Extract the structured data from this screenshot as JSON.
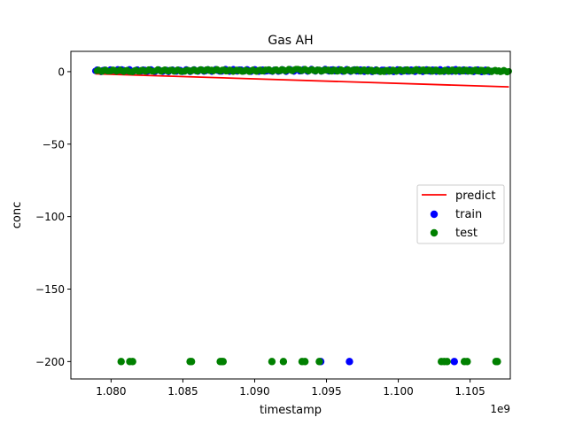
{
  "chart_data": {
    "type": "scatter",
    "title": "Gas AH",
    "xlabel": "timestamp",
    "ylabel": "conc",
    "x_offset_label": "1e9",
    "xlim": [
      1077200000.0,
      1107800000.0
    ],
    "ylim": [
      -212,
      14
    ],
    "x_ticks": [
      1080000000.0,
      1085000000.0,
      1090000000.0,
      1095000000.0,
      1100000000.0,
      1105000000.0
    ],
    "x_tick_labels": [
      "1.080",
      "1.085",
      "1.090",
      "1.095",
      "1.100",
      "1.105"
    ],
    "y_ticks": [
      0,
      -50,
      -100,
      -150,
      -200
    ],
    "y_tick_labels": [
      "0",
      "−50",
      "−100",
      "−150",
      "−200"
    ],
    "grid": false,
    "legend_position": "center-right",
    "series": [
      {
        "name": "predict",
        "kind": "line",
        "color": "#ff0000",
        "points": [
          [
            1078900000.0,
            -1.5
          ],
          [
            1107700000.0,
            -10.5
          ]
        ]
      },
      {
        "name": "train",
        "kind": "scatter",
        "color": "#0000ff",
        "points": [
          [
            1078900000.0,
            0.5
          ],
          [
            1080600000.0,
            0.8
          ],
          [
            1084000000.0,
            0.6
          ],
          [
            1087700000.0,
            0.9
          ],
          [
            1091100000.0,
            0.7
          ],
          [
            1094500000.0,
            1.0
          ],
          [
            1099000000.0,
            0.6
          ],
          [
            1104000000.0,
            0.8
          ],
          [
            1106500000.0,
            0.5
          ],
          [
            1094600000.0,
            -200
          ],
          [
            1096600000.0,
            -200
          ],
          [
            1103900000.0,
            -200
          ]
        ]
      },
      {
        "name": "test",
        "kind": "scatter",
        "color": "#008000",
        "points": [
          [
            1079000000.0,
            0.5
          ],
          [
            1080000000.0,
            0.8
          ],
          [
            1081500000.0,
            0.4
          ],
          [
            1083000000.0,
            0.9
          ],
          [
            1085000000.0,
            0.6
          ],
          [
            1087000000.0,
            1.1
          ],
          [
            1089000000.0,
            0.5
          ],
          [
            1091000000.0,
            0.8
          ],
          [
            1093000000.0,
            1.2
          ],
          [
            1095000000.0,
            0.7
          ],
          [
            1097000000.0,
            0.9
          ],
          [
            1099000000.0,
            0.5
          ],
          [
            1101000000.0,
            1.0
          ],
          [
            1103000000.0,
            0.6
          ],
          [
            1105000000.0,
            0.8
          ],
          [
            1107000000.0,
            0.4
          ],
          [
            1107700000.0,
            0.3
          ],
          [
            1080700000.0,
            -200
          ],
          [
            1081300000.0,
            -200
          ],
          [
            1081500000.0,
            -200
          ],
          [
            1085500000.0,
            -200
          ],
          [
            1085600000.0,
            -200
          ],
          [
            1087600000.0,
            -200
          ],
          [
            1087700000.0,
            -200
          ],
          [
            1087800000.0,
            -200
          ],
          [
            1091200000.0,
            -200
          ],
          [
            1092000000.0,
            -200
          ],
          [
            1093300000.0,
            -200
          ],
          [
            1093500000.0,
            -200
          ],
          [
            1094500000.0,
            -200
          ],
          [
            1103000000.0,
            -200
          ],
          [
            1103200000.0,
            -200
          ],
          [
            1103400000.0,
            -200
          ],
          [
            1104600000.0,
            -200
          ],
          [
            1104800000.0,
            -200
          ],
          [
            1106800000.0,
            -200
          ],
          [
            1106900000.0,
            -200
          ]
        ]
      }
    ]
  }
}
